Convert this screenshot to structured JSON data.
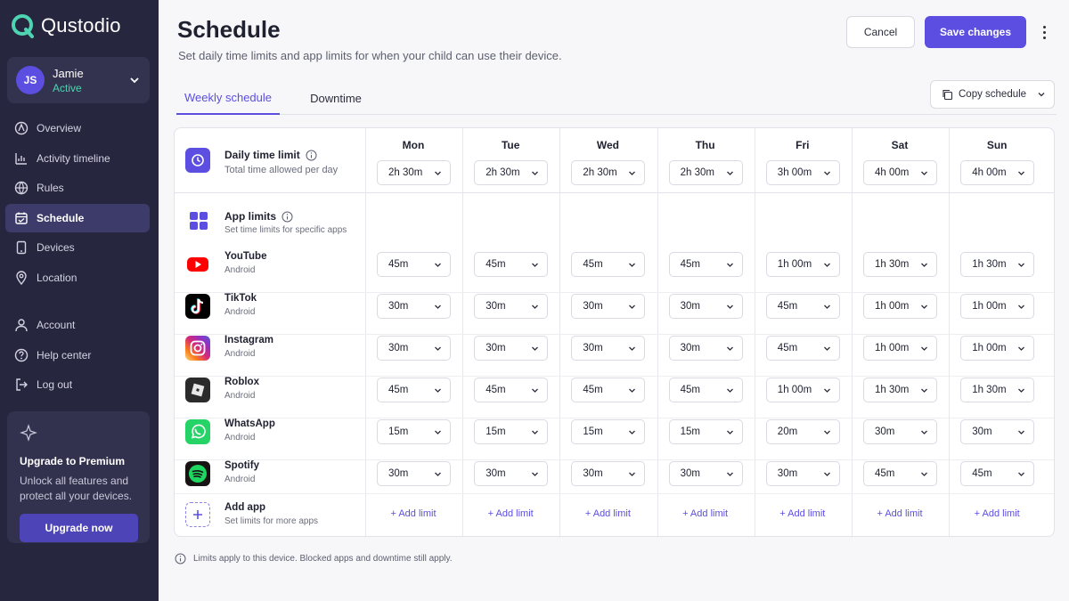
{
  "brand": {
    "name": "Qustodio",
    "accent": "#5b4ee0",
    "sidebar_bg": "#27263f",
    "active_green": "#4ed4b0"
  },
  "profile": {
    "initials": "JS",
    "name": "Jamie",
    "status": "Active"
  },
  "nav": {
    "main": [
      {
        "label": "Overview",
        "icon": "overview-icon"
      },
      {
        "label": "Activity timeline",
        "icon": "activity-chart-icon"
      },
      {
        "label": "Rules",
        "icon": "globe-icon"
      },
      {
        "label": "Schedule",
        "icon": "calendar-icon",
        "active": true
      },
      {
        "label": "Devices",
        "icon": "device-icon"
      },
      {
        "label": "Location",
        "icon": "location-pin-icon"
      }
    ],
    "secondary": [
      {
        "label": "Account",
        "icon": "user-icon"
      },
      {
        "label": "Help center",
        "icon": "help-icon"
      },
      {
        "label": "Log out",
        "icon": "logout-icon"
      }
    ]
  },
  "premium": {
    "title": "Upgrade to Premium",
    "text": "Unlock all features and protect all your devices.",
    "button": "Upgrade now"
  },
  "header": {
    "title": "Schedule",
    "subtitle": "Set daily time limits and app limits for when your child can use their device.",
    "cancel": "Cancel",
    "save": "Save changes"
  },
  "tabs": [
    {
      "label": "Weekly schedule",
      "active": true
    },
    {
      "label": "Downtime",
      "active": false
    }
  ],
  "copy_schedule": "Copy schedule",
  "table": {
    "days": [
      "Mon",
      "Tue",
      "Wed",
      "Thu",
      "Fri",
      "Sat",
      "Sun"
    ],
    "daily_limit": {
      "title": "Daily time limit",
      "subtitle": "Total time allowed per day",
      "values": [
        "2h 30m",
        "2h 30m",
        "2h 30m",
        "2h 30m",
        "3h 00m",
        "4h 00m",
        "4h 00m"
      ]
    },
    "app_limits": {
      "title": "App limits",
      "subtitle": "Set time limits for specific apps"
    },
    "apps": [
      {
        "name": "YouTube",
        "platform": "Android",
        "icon": "youtube-icon",
        "values": [
          "45m",
          "45m",
          "45m",
          "45m",
          "1h 00m",
          "1h 30m",
          "1h 30m"
        ]
      },
      {
        "name": "TikTok",
        "platform": "Android",
        "icon": "tiktok-icon",
        "values": [
          "30m",
          "30m",
          "30m",
          "30m",
          "45m",
          "1h 00m",
          "1h 00m"
        ]
      },
      {
        "name": "Instagram",
        "platform": "Android",
        "icon": "instagram-icon",
        "values": [
          "30m",
          "30m",
          "30m",
          "30m",
          "45m",
          "1h 00m",
          "1h 00m"
        ]
      },
      {
        "name": "Roblox",
        "platform": "Android",
        "icon": "roblox-icon",
        "values": [
          "45m",
          "45m",
          "45m",
          "45m",
          "1h 00m",
          "1h 30m",
          "1h 30m"
        ]
      },
      {
        "name": "WhatsApp",
        "platform": "Android",
        "icon": "whatsapp-icon",
        "values": [
          "15m",
          "15m",
          "15m",
          "15m",
          "20m",
          "30m",
          "30m"
        ]
      },
      {
        "name": "Spotify",
        "platform": "Android",
        "icon": "spotify-icon",
        "values": [
          "30m",
          "30m",
          "30m",
          "30m",
          "30m",
          "45m",
          "45m"
        ]
      }
    ],
    "add_app": {
      "title": "Add app",
      "subtitle": "Set limits for more apps",
      "limit_label": "+ Add limit"
    }
  },
  "footnote": "Limits apply to this device. Blocked apps and downtime still apply."
}
